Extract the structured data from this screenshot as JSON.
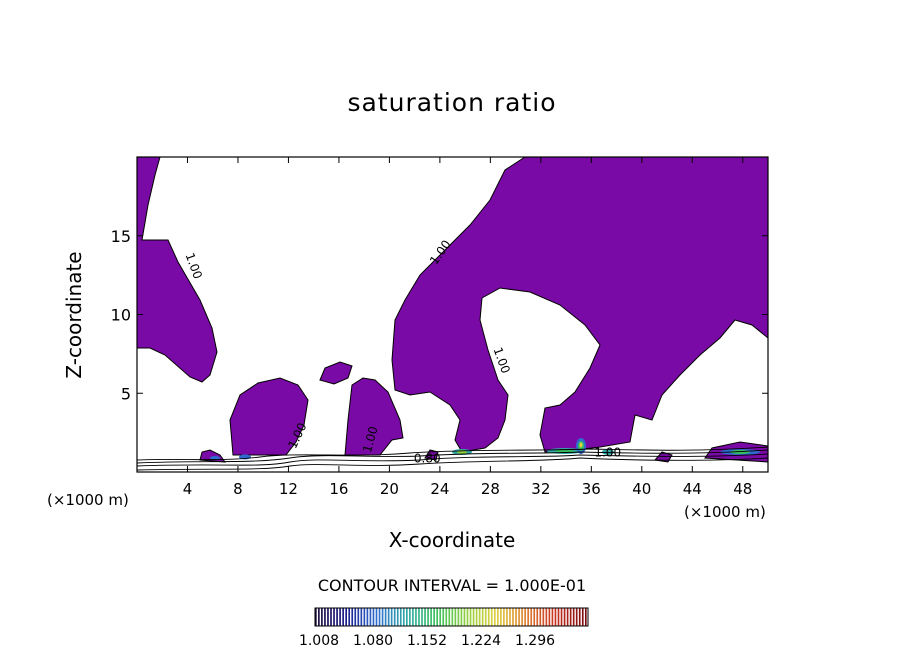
{
  "chart_data": {
    "type": "contour",
    "title": "saturation ratio",
    "xlabel": "X-coordinate",
    "ylabel": "Z-coordinate",
    "x_unit": "(×1000 m)",
    "xlim": [
      0,
      50
    ],
    "ylim": [
      0,
      20
    ],
    "x_ticks": [
      4,
      8,
      12,
      16,
      20,
      24,
      28,
      32,
      36,
      40,
      44,
      48
    ],
    "y_ticks": [
      5,
      10,
      15
    ],
    "contour_interval_text": "CONTOUR INTERVAL = 1.000E-01",
    "contour_labels": [
      {
        "text": "1.00",
        "x": 4.2,
        "z": 13.0,
        "angle": 70
      },
      {
        "text": "1.00",
        "x": 24.3,
        "z": 13.8,
        "angle": -55
      },
      {
        "text": "1.00",
        "x": 28.6,
        "z": 7.0,
        "angle": 70
      },
      {
        "text": "1.00",
        "x": 13.0,
        "z": 2.2,
        "angle": -65
      },
      {
        "text": "1.00",
        "x": 18.8,
        "z": 2.0,
        "angle": -75
      },
      {
        "text": "0.80",
        "x": 23.0,
        "z": 0.6,
        "angle": 0
      },
      {
        "text": "1.00",
        "x": 37.3,
        "z": 1.0,
        "angle": 0
      }
    ],
    "colorbar": {
      "labels": [
        "1.008",
        "1.080",
        "1.152",
        "1.224",
        "1.296"
      ],
      "colors": [
        "#1a0a3a",
        "#1a1a8c",
        "#2f6cd0",
        "#30a8a8",
        "#38c060",
        "#90d040",
        "#e0d040",
        "#e08030",
        "#c83020",
        "#7a0a10"
      ]
    },
    "fill_color": "#7a0aa6"
  }
}
